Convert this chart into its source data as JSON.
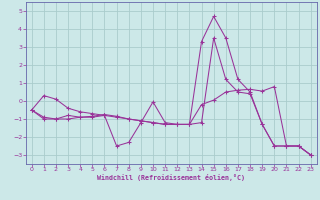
{
  "xlabel": "Windchill (Refroidissement éolien,°C)",
  "background_color": "#cce8e8",
  "grid_color": "#aacccc",
  "line_color": "#993399",
  "spine_color": "#6666aa",
  "x_ticks": [
    0,
    1,
    2,
    3,
    4,
    5,
    6,
    7,
    8,
    9,
    10,
    11,
    12,
    13,
    14,
    15,
    16,
    17,
    18,
    19,
    20,
    21,
    22,
    23
  ],
  "ylim": [
    -3.5,
    5.5
  ],
  "xlim": [
    -0.5,
    23.5
  ],
  "yticks": [
    -3,
    -2,
    -1,
    0,
    1,
    2,
    3,
    4,
    5
  ],
  "series": [
    [
      -0.5,
      0.3,
      0.1,
      -0.4,
      -0.6,
      -0.7,
      -0.8,
      -2.5,
      -2.3,
      -1.2,
      -0.05,
      -1.2,
      -1.3,
      -1.3,
      3.3,
      4.7,
      3.5,
      1.2,
      0.5,
      -1.3,
      -2.5,
      -2.5,
      -2.5,
      -3.0
    ],
    [
      -0.5,
      -0.9,
      -1.0,
      -1.0,
      -0.9,
      -0.85,
      -0.75,
      -0.85,
      -1.0,
      -1.1,
      -1.2,
      -1.3,
      -1.3,
      -1.3,
      -0.2,
      0.05,
      0.5,
      0.6,
      0.65,
      0.55,
      0.8,
      -2.5,
      -2.5,
      -3.0
    ],
    [
      -0.5,
      -1.0,
      -1.0,
      -0.8,
      -0.9,
      -0.9,
      -0.8,
      -0.9,
      -1.0,
      -1.1,
      -1.2,
      -1.3,
      -1.3,
      -1.3,
      -1.2,
      3.5,
      1.2,
      0.5,
      0.4,
      -1.3,
      -2.5,
      -2.5,
      -2.5,
      -3.0
    ]
  ],
  "figsize": [
    3.2,
    2.0
  ],
  "dpi": 100
}
